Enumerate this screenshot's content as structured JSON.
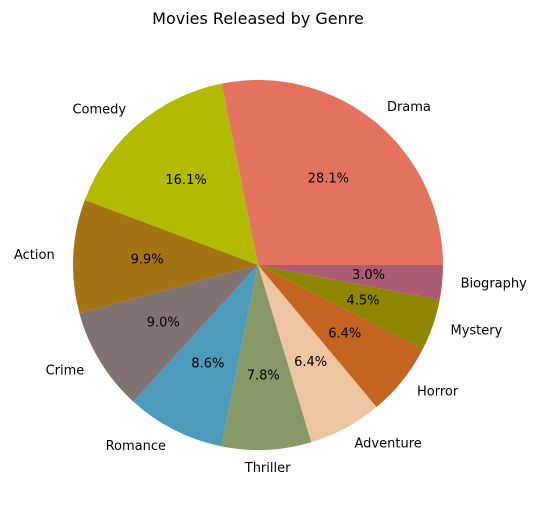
{
  "chart_data": {
    "type": "pie",
    "title": "Movies Released by Genre",
    "categories": [
      "Drama",
      "Comedy",
      "Action",
      "Crime",
      "Romance",
      "Thriller",
      "Adventure",
      "Horror",
      "Mystery",
      "Biography"
    ],
    "values": [
      28.1,
      16.1,
      9.9,
      9.0,
      8.6,
      7.8,
      6.4,
      6.4,
      4.5,
      3.0
    ],
    "value_labels": [
      "28.1%",
      "16.1%",
      "9.9%",
      "9.0%",
      "8.6%",
      "7.8%",
      "6.4%",
      "6.4%",
      "4.5%",
      "3.0%"
    ],
    "colors": [
      "#E3735E",
      "#B2BB00",
      "#A47414",
      "#807372",
      "#4C9BBA",
      "#879966",
      "#EDC5A0",
      "#C56321",
      "#8E8500",
      "#AC5C72"
    ],
    "start_angle_deg": 0,
    "direction": "counterclockwise",
    "legend": "none"
  }
}
